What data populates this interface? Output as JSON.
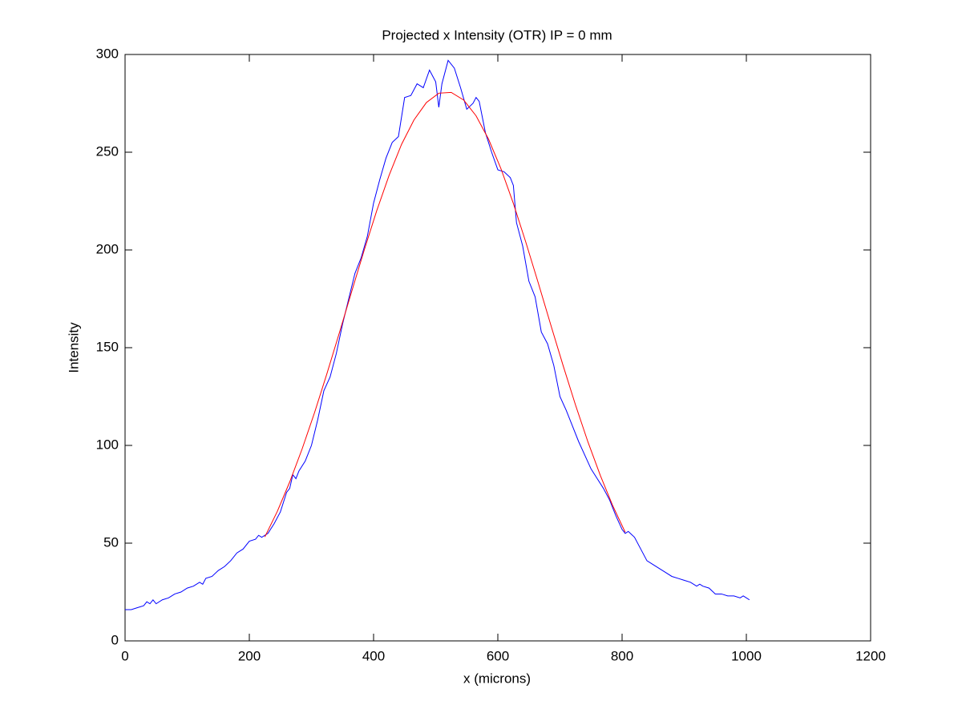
{
  "chart_data": {
    "type": "line",
    "title": "Projected x Intensity (OTR) IP = 0 mm",
    "x_label": "x (microns)",
    "y_label": "Intensity",
    "xlim": [
      0,
      1200
    ],
    "xticks": [
      0,
      200,
      400,
      600,
      800,
      1000,
      1200
    ],
    "ylim": [
      0,
      300
    ],
    "yticks": [
      0,
      50,
      100,
      150,
      200,
      250,
      300
    ],
    "grid": false,
    "series": [
      {
        "color": "#0000ff",
        "x": [
          0,
          10,
          20,
          30,
          35,
          40,
          45,
          50,
          60,
          70,
          80,
          90,
          100,
          110,
          120,
          125,
          130,
          140,
          150,
          160,
          170,
          180,
          190,
          200,
          210,
          215,
          220,
          230,
          240,
          250,
          260,
          265,
          270,
          275,
          280,
          290,
          300,
          310,
          320,
          330,
          340,
          350,
          360,
          370,
          380,
          390,
          400,
          410,
          420,
          430,
          440,
          450,
          460,
          470,
          480,
          490,
          500,
          505,
          510,
          520,
          530,
          540,
          550,
          560,
          565,
          570,
          580,
          590,
          600,
          610,
          620,
          625,
          630,
          640,
          650,
          660,
          670,
          680,
          690,
          700,
          710,
          720,
          730,
          740,
          750,
          760,
          770,
          780,
          790,
          800,
          805,
          810,
          820,
          830,
          840,
          850,
          860,
          870,
          880,
          890,
          900,
          910,
          920,
          925,
          930,
          940,
          950,
          960,
          970,
          980,
          990,
          995,
          1000,
          1005
        ],
        "values": [
          16,
          16,
          17,
          18,
          20,
          19,
          21,
          19,
          21,
          22,
          24,
          25,
          27,
          28,
          30,
          29,
          32,
          33,
          36,
          38,
          41,
          45,
          47,
          51,
          52,
          54,
          53,
          55,
          60,
          66,
          76,
          78,
          85,
          83,
          87,
          92,
          100,
          113,
          128,
          135,
          147,
          162,
          175,
          188,
          196,
          207,
          224,
          236,
          247,
          255,
          258,
          278,
          279,
          285,
          283,
          292,
          286,
          273,
          285,
          297,
          293,
          283,
          272,
          275,
          278,
          276,
          260,
          250,
          241,
          240,
          237,
          233,
          214,
          202,
          184,
          176,
          158,
          152,
          141,
          125,
          118,
          110,
          102,
          95,
          88,
          83,
          78,
          72,
          64,
          57,
          55,
          56,
          53,
          47,
          41,
          39,
          37,
          35,
          33,
          32,
          31,
          30,
          28,
          29,
          28,
          27,
          24,
          24,
          23,
          23,
          22,
          23,
          22,
          21
        ]
      },
      {
        "color": "#ff0000",
        "x": [
          225,
          245,
          265,
          285,
          305,
          325,
          345,
          365,
          385,
          405,
          425,
          445,
          465,
          485,
          505,
          525,
          545,
          565,
          585,
          605,
          625,
          645,
          665,
          685,
          705,
          725,
          745,
          765,
          785,
          805
        ],
        "values": [
          53.2,
          66.2,
          81.3,
          98.2,
          116.8,
          136.8,
          157.7,
          179.0,
          200.0,
          220.0,
          238.2,
          254.0,
          266.5,
          275.4,
          280.2,
          280.6,
          276.7,
          268.6,
          256.7,
          241.6,
          223.8,
          204.0,
          183.2,
          161.9,
          140.9,
          120.7,
          101.8,
          84.6,
          69.1,
          55.6
        ]
      }
    ]
  }
}
